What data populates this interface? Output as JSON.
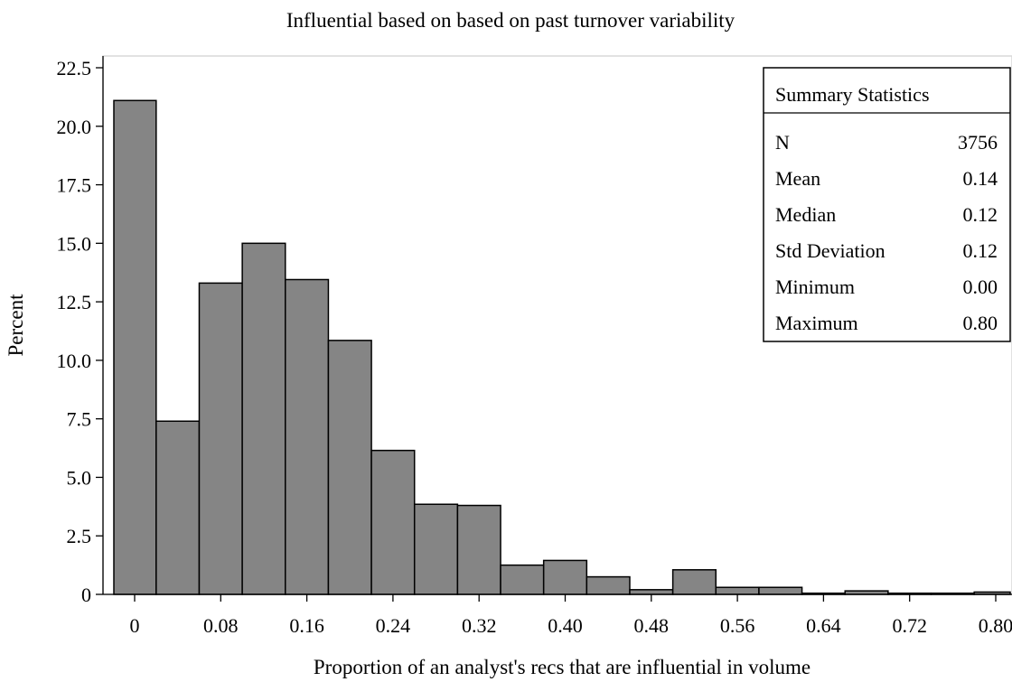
{
  "chart_data": {
    "type": "bar",
    "title": "Influential based on based on past turnover variability",
    "xlabel": "Proportion of an analyst's recs that are influential in volume",
    "ylabel": "Percent",
    "ylim": [
      0,
      22.5
    ],
    "yticks": [
      0,
      2.5,
      5.0,
      7.5,
      10.0,
      12.5,
      15.0,
      17.5,
      20.0,
      22.5
    ],
    "ytick_labels": [
      "0",
      "2.5",
      "5.0",
      "7.5",
      "10.0",
      "12.5",
      "15.0",
      "17.5",
      "20.0",
      "22.5"
    ],
    "xticks": [
      0,
      0.08,
      0.16,
      0.24,
      0.32,
      0.4,
      0.48,
      0.56,
      0.64,
      0.72,
      0.8
    ],
    "xtick_labels": [
      "0",
      "0.08",
      "0.16",
      "0.24",
      "0.32",
      "0.40",
      "0.48",
      "0.56",
      "0.64",
      "0.72",
      "0.80"
    ],
    "bin_width": 0.04,
    "bin_centers": [
      0.0,
      0.04,
      0.08,
      0.12,
      0.16,
      0.2,
      0.24,
      0.28,
      0.32,
      0.36,
      0.4,
      0.44,
      0.48,
      0.52,
      0.56,
      0.6,
      0.64,
      0.68,
      0.72,
      0.76,
      0.8
    ],
    "values": [
      21.1,
      7.4,
      13.3,
      15.0,
      13.45,
      10.85,
      6.15,
      3.85,
      3.8,
      1.25,
      1.45,
      0.75,
      0.2,
      1.05,
      0.3,
      0.3,
      0.05,
      0.15,
      0.05,
      0.05,
      0.1
    ],
    "bar_color": "#858585",
    "grid": false,
    "summary_statistics": {
      "title": "Summary Statistics",
      "rows": [
        {
          "label": "N",
          "value": "3756"
        },
        {
          "label": "Mean",
          "value": "0.14"
        },
        {
          "label": "Median",
          "value": "0.12"
        },
        {
          "label": "Std Deviation",
          "value": "0.12"
        },
        {
          "label": "Minimum",
          "value": "0.00"
        },
        {
          "label": "Maximum",
          "value": "0.80"
        }
      ],
      "placement": "top-right"
    }
  }
}
